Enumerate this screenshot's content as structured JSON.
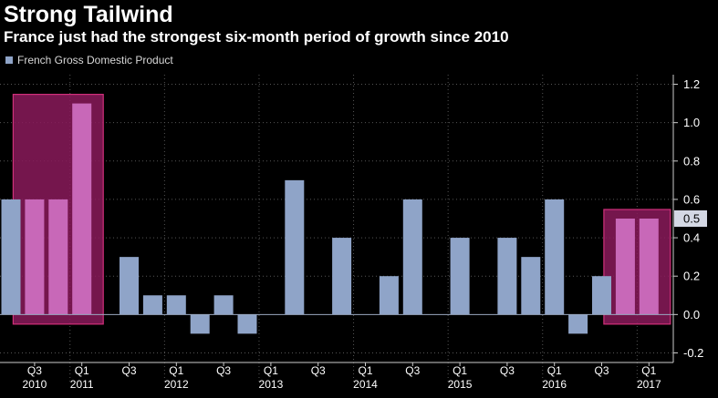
{
  "header": {
    "title": "Strong Tailwind",
    "subtitle": "France just had the strongest six-month period of growth since 2010"
  },
  "colors": {
    "bar": "#8fa4c8",
    "highlight_fill": "#8a1a5a",
    "highlight_edge": "#d0307a",
    "highlight_bar": "#c868b8",
    "grid": "#555555",
    "background": "#000000"
  },
  "chart_data": {
    "type": "bar",
    "title": "Strong Tailwind",
    "subtitle": "France just had the strongest six-month period of growth since 2010",
    "series": [
      {
        "name": "French Gross Domestic Product",
        "values": [
          0.6,
          0.6,
          0.6,
          1.1,
          0.0,
          0.3,
          0.1,
          0.1,
          -0.1,
          0.1,
          -0.1,
          0.0,
          0.7,
          0.0,
          0.4,
          0.0,
          0.2,
          0.6,
          0.0,
          0.4,
          0.0,
          0.4,
          0.3,
          0.6,
          -0.1,
          0.2,
          0.5,
          0.5
        ]
      }
    ],
    "categories": [
      "2010Q2",
      "2010Q3",
      "2010Q4",
      "2011Q1",
      "2011Q2",
      "2011Q3",
      "2011Q4",
      "2012Q1",
      "2012Q2",
      "2012Q3",
      "2012Q4",
      "2013Q1",
      "2013Q2",
      "2013Q3",
      "2013Q4",
      "2014Q1",
      "2014Q2",
      "2014Q3",
      "2014Q4",
      "2015Q1",
      "2015Q2",
      "2015Q3",
      "2015Q4",
      "2016Q1",
      "2016Q2",
      "2016Q3",
      "2016Q4",
      "2017Q1"
    ],
    "highlighted_ranges": [
      [
        1,
        3
      ],
      [
        26,
        27
      ]
    ],
    "ylim": [
      -0.25,
      1.25
    ],
    "yticks": [
      -0.2,
      0.0,
      0.2,
      0.4,
      0.6,
      0.8,
      1.0,
      1.2
    ],
    "ytick_labels": [
      "-0.2",
      "0.0",
      "0.2",
      "0.4",
      "0.6",
      "0.8",
      "1.0",
      "1.2"
    ],
    "last_value_label": "0.5",
    "xtick_quarters": [
      {
        "index": 1,
        "label": "Q3"
      },
      {
        "index": 3,
        "label": "Q1"
      },
      {
        "index": 5,
        "label": "Q3"
      },
      {
        "index": 7,
        "label": "Q1"
      },
      {
        "index": 9,
        "label": "Q3"
      },
      {
        "index": 11,
        "label": "Q1"
      },
      {
        "index": 13,
        "label": "Q3"
      },
      {
        "index": 15,
        "label": "Q1"
      },
      {
        "index": 17,
        "label": "Q3"
      },
      {
        "index": 19,
        "label": "Q1"
      },
      {
        "index": 21,
        "label": "Q3"
      },
      {
        "index": 23,
        "label": "Q1"
      },
      {
        "index": 25,
        "label": "Q3"
      },
      {
        "index": 27,
        "label": "Q1"
      }
    ],
    "xtick_years": [
      {
        "index": 1,
        "label": "2010"
      },
      {
        "index": 3,
        "label": "2011"
      },
      {
        "index": 7,
        "label": "2012"
      },
      {
        "index": 11,
        "label": "2013"
      },
      {
        "index": 15,
        "label": "2014"
      },
      {
        "index": 19,
        "label": "2015"
      },
      {
        "index": 23,
        "label": "2016"
      },
      {
        "index": 27,
        "label": "2017"
      }
    ],
    "year_dividers_after": [
      2,
      6,
      10,
      14,
      18,
      22,
      26
    ],
    "legend": "top-left"
  }
}
